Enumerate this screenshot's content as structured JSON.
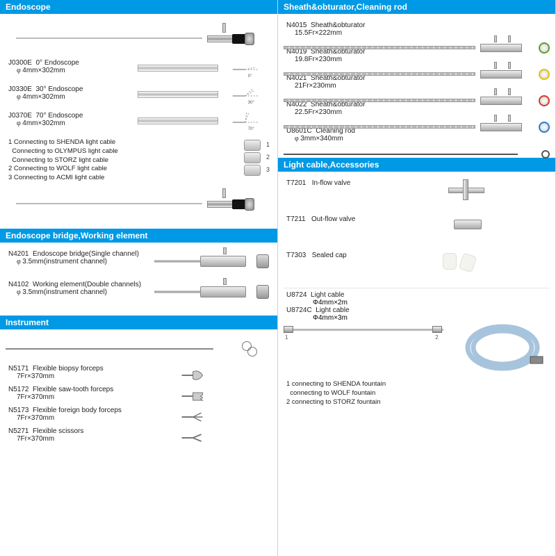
{
  "colors": {
    "header_bg": "#0099e5",
    "header_fg": "#ffffff",
    "ring_green": "#5aa02c",
    "ring_yellow": "#e5c100",
    "ring_red": "#d63a2a",
    "ring_blue": "#2a7ad6"
  },
  "left": {
    "endoscope": {
      "title": "Endoscope",
      "items": [
        {
          "code": "J0300E",
          "name": "0° Endoscope",
          "spec": "4mm×302mm",
          "angle_deg": 0
        },
        {
          "code": "J0330E",
          "name": "30° Endoscope",
          "spec": "4mm×302mm",
          "angle_deg": 30
        },
        {
          "code": "J0370E",
          "name": "70° Endoscope",
          "spec": "4mm×302mm",
          "angle_deg": 70
        }
      ],
      "adapters": [
        "1 Connecting to SHENDA light cable",
        "  Connecting to OLYMPUS light cable",
        "  Connecting to STORZ light cable",
        "2 Connecting to WOLF light cable",
        "3 Connecting to ACMI light cable"
      ]
    },
    "bridge": {
      "title": "Endoscope bridge,Working element",
      "items": [
        {
          "code": "N4201",
          "name": "Endoscope bridge(Single channel)",
          "spec": "3.5mm(instrument channel)"
        },
        {
          "code": "N4102",
          "name": "Working element(Double channels)",
          "spec": "3.5mm(instrument channel)"
        }
      ]
    },
    "instrument": {
      "title": "Instrument",
      "items": [
        {
          "code": "N5171",
          "name": "Flexible biopsy forceps",
          "spec": "7Fr×370mm",
          "tip": "cup"
        },
        {
          "code": "N5172",
          "name": "Flexible saw-tooth forceps",
          "spec": "7Fr×370mm",
          "tip": "saw"
        },
        {
          "code": "N5173",
          "name": "Flexible foreign body  forceps",
          "spec": "7Fr×370mm",
          "tip": "grasp"
        },
        {
          "code": "N5271",
          "name": "Flexible scissors",
          "spec": "7Fr×370mm",
          "tip": "sciss"
        }
      ]
    }
  },
  "right": {
    "sheath": {
      "title": "Sheath&obturator,Cleaning rod",
      "items": [
        {
          "code": "N4015",
          "name": "Sheath&obturator",
          "spec": "15.5Fr×222mm",
          "ring": "#5aa02c"
        },
        {
          "code": "N4019",
          "name": "Sheath&obturator",
          "spec": "19.8Fr×230mm",
          "ring": "#e5c100"
        },
        {
          "code": "N4021",
          "name": "Sheath&obturator",
          "spec": "21Fr×230mm",
          "ring": "#d63a2a"
        },
        {
          "code": "N4022",
          "name": "Sheath&obturator",
          "spec": "22.5Fr×230mm",
          "ring": "#2a7ad6"
        },
        {
          "code": "U8601C",
          "name": "Cleaning rod",
          "spec": "3mm×340mm",
          "rod": true
        }
      ]
    },
    "accessories": {
      "title": "Light cable,Accessories",
      "items": [
        {
          "code": "T7201",
          "name": "In-flow valve",
          "illus": "valve"
        },
        {
          "code": "T7211",
          "name": "Out-flow valve",
          "illus": "plug"
        },
        {
          "code": "T7303",
          "name": "Sealed cap",
          "illus": "caps"
        }
      ],
      "cables": [
        {
          "code": "U8724",
          "name": "Light cable",
          "spec": "Φ4mm×2m"
        },
        {
          "code": "U8724C",
          "name": "Light cable",
          "spec": "Φ4mm×3m"
        }
      ],
      "cable_notes": [
        "1 connecting to SHENDA fountain",
        "  connecting to WOLF fountain",
        "2 connecting to STORZ fountain"
      ]
    }
  }
}
